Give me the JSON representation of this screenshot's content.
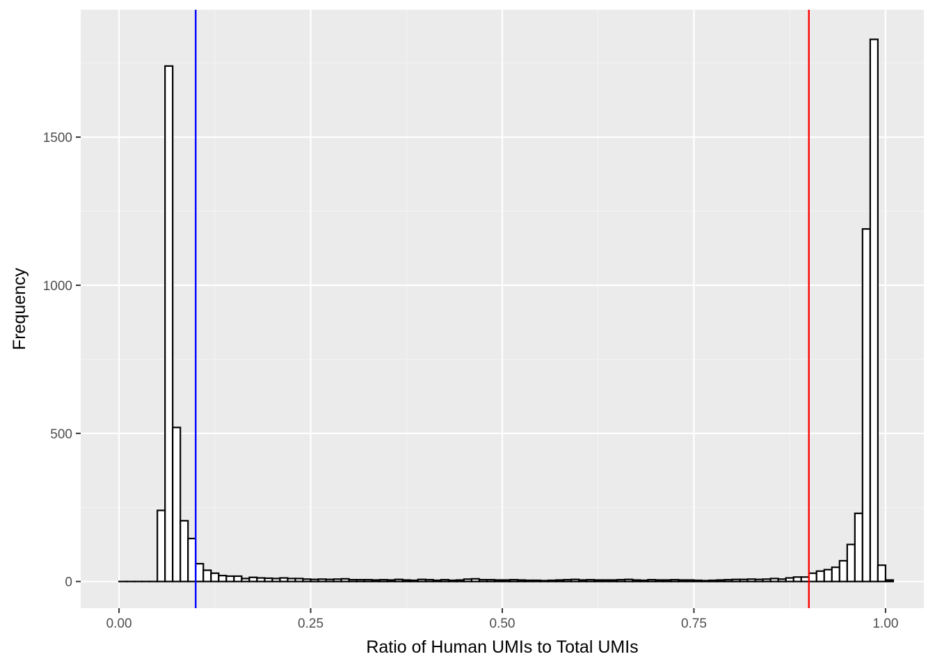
{
  "chart_data": {
    "type": "bar",
    "title": "",
    "xlabel": "Ratio of Human UMIs to Total UMIs",
    "ylabel": "Frequency",
    "xlim": [
      -0.05,
      1.05
    ],
    "ylim": [
      -90,
      1930
    ],
    "x_ticks": [
      0.0,
      0.25,
      0.5,
      0.75,
      1.0
    ],
    "x_tick_labels": [
      "0.00",
      "0.25",
      "0.50",
      "0.75",
      "1.00"
    ],
    "y_ticks": [
      0,
      500,
      1000,
      1500
    ],
    "y_tick_labels": [
      "0",
      "500",
      "1000",
      "1500"
    ],
    "bin_width": 0.01,
    "bins_start": 0.0,
    "values": [
      0,
      0,
      0,
      0,
      0,
      240,
      1740,
      520,
      205,
      145,
      60,
      38,
      28,
      20,
      18,
      18,
      10,
      14,
      12,
      11,
      10,
      12,
      10,
      10,
      8,
      7,
      8,
      7,
      8,
      9,
      6,
      6,
      6,
      5,
      6,
      5,
      7,
      5,
      4,
      7,
      6,
      4,
      6,
      4,
      5,
      8,
      9,
      6,
      6,
      5,
      5,
      6,
      5,
      4,
      4,
      3,
      4,
      5,
      6,
      7,
      5,
      6,
      5,
      5,
      5,
      6,
      7,
      5,
      4,
      6,
      5,
      5,
      6,
      5,
      5,
      4,
      3,
      4,
      5,
      6,
      7,
      7,
      8,
      7,
      8,
      10,
      8,
      12,
      15,
      15,
      28,
      35,
      40,
      48,
      70,
      125,
      230,
      1190,
      1830,
      55,
      5
    ],
    "vlines": [
      {
        "x": 0.1,
        "color": "#0000ff"
      },
      {
        "x": 0.9,
        "color": "#ff0000"
      }
    ],
    "grid": true,
    "legend": "none",
    "colors": {
      "panel_bg": "#ebebeb",
      "grid_major": "#ffffff",
      "grid_minor": "#f4f4f4",
      "bar_fill": "#ffffff",
      "bar_stroke": "#000000",
      "tick_text": "#4d4d4d",
      "tick_mark": "#333333"
    }
  }
}
